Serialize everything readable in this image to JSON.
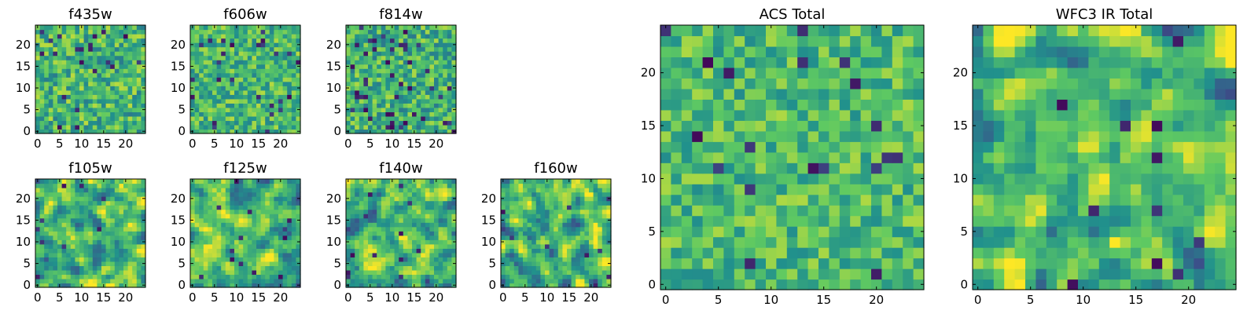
{
  "chart_data": {
    "type": "heatmap",
    "grid_size": 25,
    "colormap": "viridis",
    "colormap_stops": [
      "#440154",
      "#3b528b",
      "#21918c",
      "#5ec962",
      "#fde725"
    ],
    "panels": [
      {
        "title": "f435w",
        "xticks": [
          0,
          5,
          10,
          15,
          20
        ],
        "yticks": [
          0,
          5,
          10,
          15,
          20
        ],
        "xlim": [
          0,
          25
        ],
        "ylim": [
          0,
          25
        ],
        "field": {
          "seed": 11,
          "smooth": 0,
          "mean": 0.66,
          "spread": 0.14,
          "dark_fraction": 0.05
        }
      },
      {
        "title": "f606w",
        "xticks": [
          0,
          5,
          10,
          15,
          20
        ],
        "yticks": [
          0,
          5,
          10,
          15,
          20
        ],
        "xlim": [
          0,
          25
        ],
        "ylim": [
          0,
          25
        ],
        "field": {
          "seed": 23,
          "smooth": 0,
          "mean": 0.66,
          "spread": 0.13,
          "dark_fraction": 0.04
        }
      },
      {
        "title": "f814w",
        "xticks": [
          0,
          5,
          10,
          15,
          20
        ],
        "yticks": [
          0,
          5,
          10,
          15,
          20
        ],
        "xlim": [
          0,
          25
        ],
        "ylim": [
          0,
          25
        ],
        "field": {
          "seed": 37,
          "smooth": 0,
          "mean": 0.64,
          "spread": 0.14,
          "dark_fraction": 0.05
        }
      },
      {
        "title": "f105w",
        "xticks": [
          0,
          5,
          10,
          15,
          20
        ],
        "yticks": [
          0,
          5,
          10,
          15,
          20
        ],
        "xlim": [
          0,
          25
        ],
        "ylim": [
          0,
          25
        ],
        "field": {
          "seed": 41,
          "smooth": 1,
          "mean": 0.66,
          "spread": 0.16,
          "dark_fraction": 0.02
        }
      },
      {
        "title": "f125w",
        "xticks": [
          0,
          5,
          10,
          15,
          20
        ],
        "yticks": [
          0,
          5,
          10,
          15,
          20
        ],
        "xlim": [
          0,
          25
        ],
        "ylim": [
          0,
          25
        ],
        "field": {
          "seed": 53,
          "smooth": 1,
          "mean": 0.66,
          "spread": 0.16,
          "dark_fraction": 0.02
        }
      },
      {
        "title": "f140w",
        "xticks": [
          0,
          5,
          10,
          15,
          20
        ],
        "yticks": [
          0,
          5,
          10,
          15,
          20
        ],
        "xlim": [
          0,
          25
        ],
        "ylim": [
          0,
          25
        ],
        "field": {
          "seed": 67,
          "smooth": 1,
          "mean": 0.66,
          "spread": 0.16,
          "dark_fraction": 0.02
        }
      },
      {
        "title": "f160w",
        "xticks": [
          0,
          5,
          10,
          15,
          20
        ],
        "yticks": [
          0,
          5,
          10,
          15,
          20
        ],
        "xlim": [
          0,
          25
        ],
        "ylim": [
          0,
          25
        ],
        "field": {
          "seed": 79,
          "smooth": 1,
          "mean": 0.66,
          "spread": 0.17,
          "dark_fraction": 0.02
        }
      },
      {
        "title": "ACS Total",
        "xticks": [
          0,
          5,
          10,
          15,
          20
        ],
        "yticks": [
          0,
          5,
          10,
          15,
          20
        ],
        "xlim": [
          0,
          25
        ],
        "ylim": [
          0,
          25
        ],
        "field": {
          "seed": 97,
          "smooth": 0,
          "mean": 0.68,
          "spread": 0.12,
          "dark_fraction": 0.025
        }
      },
      {
        "title": "WFC3 IR Total",
        "xticks": [
          0,
          5,
          10,
          15,
          20
        ],
        "yticks": [
          0,
          5,
          10,
          15,
          20
        ],
        "xlim": [
          0,
          25
        ],
        "ylim": [
          0,
          25
        ],
        "field": {
          "seed": 113,
          "smooth": 1,
          "mean": 0.68,
          "spread": 0.15,
          "dark_fraction": 0.012
        }
      }
    ]
  }
}
